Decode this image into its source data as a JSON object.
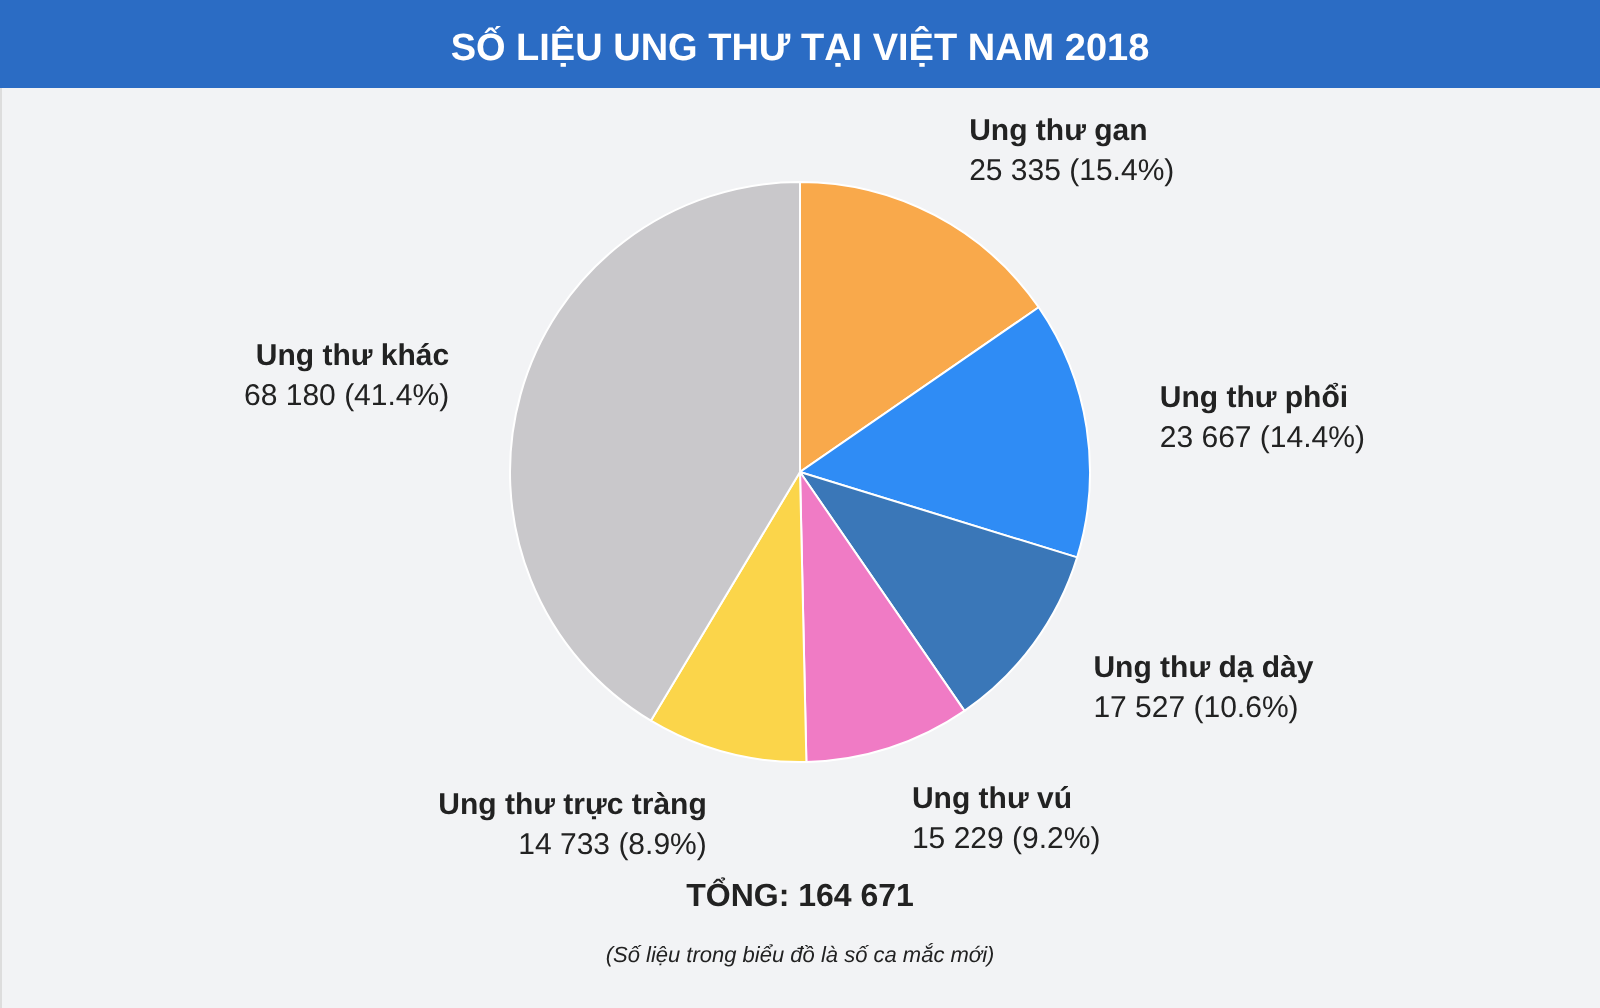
{
  "chart_data": {
    "type": "pie",
    "title": "SỐ LIỆU UNG THƯ TẠI VIỆT NAM 2018",
    "categories": [
      "Ung thư gan",
      "Ung thư phổi",
      "Ung thư dạ dày",
      "Ung thư vú",
      "Ung thư trực tràng",
      "Ung thư khác"
    ],
    "values": [
      25335,
      23667,
      17527,
      15229,
      14733,
      68180
    ],
    "value_labels": [
      "25 335 (15.4%)",
      "23 667 (14.4%)",
      "17 527 (10.6%)",
      "15 229 (9.2%)",
      "14 733 (8.9%)",
      "68 180 (41.4%)"
    ],
    "colors": [
      "#f9a94b",
      "#2f8cf5",
      "#3a77b8",
      "#f07bc5",
      "#fbd54a",
      "#c9c8cb"
    ],
    "annotations": [
      "TỔNG: 164 671",
      "(Số liệu trong biểu đồ là số ca mắc mới)"
    ]
  }
}
